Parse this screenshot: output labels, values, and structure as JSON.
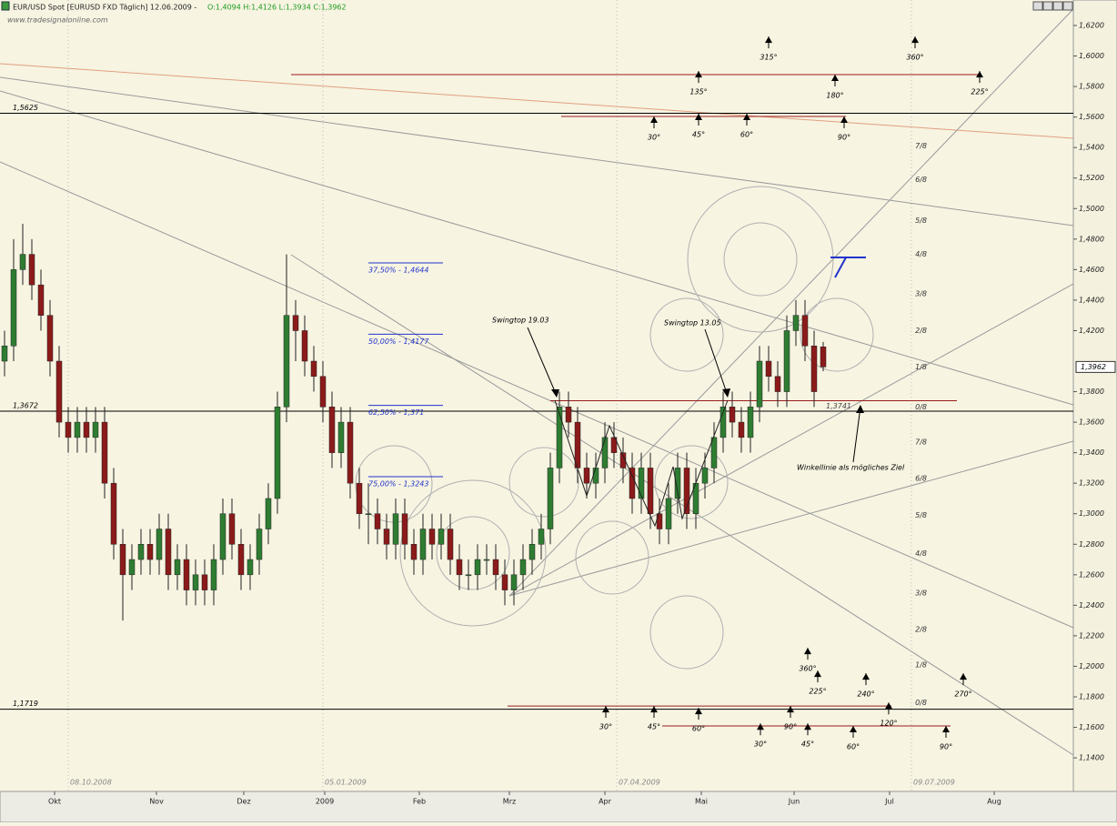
{
  "chart_data": {
    "type": "candlestick",
    "title": "EUR/USD Spot [EURUSD FXD  Täglich] 12.06.2009 -",
    "quote": "O:1,4094 H:1,4126 L:1,3934 C:1,3962",
    "watermark": "www.tradesignalonline.com",
    "up_color": "#2e7d32",
    "down_color": "#8b1a1a",
    "xlim": [
      -11,
      225
    ],
    "ylim": [
      1.118,
      1.6367
    ],
    "xticks": [
      {
        "value": 1,
        "label": "Okt"
      },
      {
        "value": 23.4,
        "label": "Nov"
      },
      {
        "value": 42.6,
        "label": "Dez"
      },
      {
        "value": 60.4,
        "label": "2009"
      },
      {
        "value": 81.2,
        "label": "Feb"
      },
      {
        "value": 101,
        "label": "Mrz"
      },
      {
        "value": 122,
        "label": "Apr"
      },
      {
        "value": 143.2,
        "label": "Mai"
      },
      {
        "value": 163.6,
        "label": "Jun"
      },
      {
        "value": 184.6,
        "label": "Jul"
      },
      {
        "value": 207.6,
        "label": "Aug"
      }
    ],
    "yticks": [
      {
        "value": 1.14,
        "label": "1,1400"
      },
      {
        "value": 1.16,
        "label": "1,1600"
      },
      {
        "value": 1.18,
        "label": "1,1800"
      },
      {
        "value": 1.2,
        "label": "1,2000"
      },
      {
        "value": 1.22,
        "label": "1,2200"
      },
      {
        "value": 1.24,
        "label": "1,2400"
      },
      {
        "value": 1.26,
        "label": "1,2600"
      },
      {
        "value": 1.28,
        "label": "1,2800"
      },
      {
        "value": 1.3,
        "label": "1,3000"
      },
      {
        "value": 1.32,
        "label": "1,3200"
      },
      {
        "value": 1.34,
        "label": "1,3400"
      },
      {
        "value": 1.36,
        "label": "1,3600"
      },
      {
        "value": 1.38,
        "label": "1,3800"
      },
      {
        "value": 1.42,
        "label": "1,4200"
      },
      {
        "value": 1.44,
        "label": "1,4400"
      },
      {
        "value": 1.46,
        "label": "1,4600"
      },
      {
        "value": 1.48,
        "label": "1,4800"
      },
      {
        "value": 1.5,
        "label": "1,5000"
      },
      {
        "value": 1.52,
        "label": "1,5200"
      },
      {
        "value": 1.54,
        "label": "1,5400"
      },
      {
        "value": 1.56,
        "label": "1,5600"
      },
      {
        "value": 1.58,
        "label": "1,5800"
      },
      {
        "value": 1.6,
        "label": "1,6000"
      },
      {
        "value": 1.62,
        "label": "1,6200"
      }
    ],
    "price_tag": {
      "value": 1.3962,
      "label": "1,3962"
    },
    "date_markers": [
      {
        "value": 4,
        "label": "08.10.2008"
      },
      {
        "value": 60,
        "label": "05.01.2009"
      },
      {
        "value": 124.6,
        "label": "07.04.2009"
      },
      {
        "value": 189.4,
        "label": "09.07.2009"
      }
    ],
    "x": [
      -10,
      -8,
      -6,
      -4,
      -2,
      0,
      2,
      4,
      6,
      8,
      10,
      12,
      14,
      16,
      18,
      20,
      22,
      24,
      26,
      28,
      30,
      32,
      34,
      36,
      38,
      40,
      42,
      44,
      46,
      48,
      50,
      52,
      54,
      56,
      58,
      60,
      62,
      64,
      66,
      68,
      70,
      72,
      74,
      76,
      78,
      80,
      82,
      84,
      86,
      88,
      90,
      92,
      94,
      96,
      98,
      100,
      102,
      104,
      106,
      108,
      110,
      112,
      114,
      116,
      118,
      120,
      122,
      124,
      126,
      128,
      130,
      132,
      134,
      136,
      138,
      140,
      142,
      144,
      146,
      148,
      150,
      152,
      154,
      156,
      158,
      160,
      162,
      164,
      166,
      168,
      170
    ],
    "open": [
      1.4,
      1.41,
      1.46,
      1.47,
      1.45,
      1.43,
      1.4,
      1.36,
      1.35,
      1.36,
      1.35,
      1.36,
      1.32,
      1.28,
      1.26,
      1.27,
      1.28,
      1.27,
      1.29,
      1.26,
      1.27,
      1.25,
      1.26,
      1.25,
      1.27,
      1.3,
      1.28,
      1.26,
      1.27,
      1.29,
      1.31,
      1.37,
      1.43,
      1.42,
      1.4,
      1.39,
      1.37,
      1.34,
      1.36,
      1.32,
      1.3,
      1.3,
      1.29,
      1.28,
      1.3,
      1.28,
      1.27,
      1.29,
      1.28,
      1.29,
      1.27,
      1.26,
      1.26,
      1.27,
      1.27,
      1.26,
      1.25,
      1.26,
      1.27,
      1.28,
      1.29,
      1.33,
      1.37,
      1.36,
      1.33,
      1.32,
      1.33,
      1.35,
      1.34,
      1.33,
      1.31,
      1.33,
      1.3,
      1.29,
      1.31,
      1.33,
      1.3,
      1.32,
      1.33,
      1.35,
      1.37,
      1.36,
      1.35,
      1.37,
      1.4,
      1.39,
      1.38,
      1.42,
      1.43,
      1.41,
      1.4094
    ],
    "high": [
      1.42,
      1.48,
      1.49,
      1.48,
      1.46,
      1.44,
      1.41,
      1.37,
      1.37,
      1.37,
      1.37,
      1.37,
      1.33,
      1.29,
      1.28,
      1.29,
      1.29,
      1.3,
      1.3,
      1.28,
      1.28,
      1.27,
      1.27,
      1.28,
      1.31,
      1.31,
      1.29,
      1.28,
      1.3,
      1.32,
      1.38,
      1.47,
      1.44,
      1.43,
      1.41,
      1.4,
      1.38,
      1.37,
      1.37,
      1.33,
      1.32,
      1.31,
      1.3,
      1.31,
      1.31,
      1.29,
      1.3,
      1.3,
      1.3,
      1.3,
      1.28,
      1.27,
      1.28,
      1.28,
      1.28,
      1.27,
      1.27,
      1.28,
      1.29,
      1.3,
      1.34,
      1.38,
      1.38,
      1.37,
      1.34,
      1.34,
      1.36,
      1.36,
      1.35,
      1.34,
      1.34,
      1.34,
      1.31,
      1.32,
      1.34,
      1.34,
      1.33,
      1.34,
      1.36,
      1.38,
      1.38,
      1.37,
      1.38,
      1.41,
      1.41,
      1.4,
      1.43,
      1.44,
      1.44,
      1.42,
      1.4126
    ],
    "low": [
      1.39,
      1.4,
      1.45,
      1.44,
      1.42,
      1.39,
      1.35,
      1.34,
      1.34,
      1.34,
      1.34,
      1.31,
      1.27,
      1.23,
      1.25,
      1.26,
      1.26,
      1.26,
      1.25,
      1.25,
      1.24,
      1.24,
      1.24,
      1.24,
      1.26,
      1.27,
      1.25,
      1.25,
      1.26,
      1.28,
      1.3,
      1.36,
      1.4,
      1.39,
      1.38,
      1.36,
      1.33,
      1.33,
      1.31,
      1.29,
      1.28,
      1.28,
      1.27,
      1.27,
      1.27,
      1.26,
      1.26,
      1.27,
      1.27,
      1.26,
      1.25,
      1.25,
      1.25,
      1.26,
      1.25,
      1.24,
      1.24,
      1.25,
      1.26,
      1.27,
      1.28,
      1.32,
      1.35,
      1.32,
      1.31,
      1.31,
      1.32,
      1.33,
      1.32,
      1.3,
      1.3,
      1.29,
      1.28,
      1.28,
      1.3,
      1.29,
      1.29,
      1.31,
      1.32,
      1.34,
      1.35,
      1.34,
      1.34,
      1.36,
      1.38,
      1.37,
      1.37,
      1.41,
      1.4,
      1.37,
      1.3934
    ],
    "close": [
      1.41,
      1.46,
      1.47,
      1.45,
      1.43,
      1.4,
      1.36,
      1.35,
      1.36,
      1.35,
      1.36,
      1.32,
      1.28,
      1.26,
      1.27,
      1.28,
      1.27,
      1.29,
      1.26,
      1.27,
      1.25,
      1.26,
      1.25,
      1.27,
      1.3,
      1.28,
      1.26,
      1.27,
      1.29,
      1.31,
      1.37,
      1.43,
      1.42,
      1.4,
      1.39,
      1.37,
      1.34,
      1.36,
      1.32,
      1.3,
      1.3,
      1.29,
      1.28,
      1.3,
      1.28,
      1.27,
      1.29,
      1.28,
      1.29,
      1.27,
      1.26,
      1.26,
      1.27,
      1.27,
      1.26,
      1.25,
      1.26,
      1.27,
      1.28,
      1.29,
      1.33,
      1.37,
      1.36,
      1.33,
      1.32,
      1.33,
      1.35,
      1.34,
      1.33,
      1.31,
      1.33,
      1.3,
      1.29,
      1.31,
      1.33,
      1.3,
      1.32,
      1.33,
      1.35,
      1.37,
      1.36,
      1.35,
      1.37,
      1.4,
      1.39,
      1.38,
      1.42,
      1.43,
      1.41,
      1.38,
      1.3962
    ],
    "levels": [
      {
        "value": 1.5625,
        "label": "1,5625"
      },
      {
        "value": 1.3672,
        "label": "1,3672"
      },
      {
        "value": 1.1719,
        "label": "1,1719"
      }
    ],
    "fib_levels": [
      {
        "value": 1.4644,
        "label": "37,50% - 1,4644"
      },
      {
        "value": 1.4177,
        "label": "50,00% - 1,4177"
      },
      {
        "value": 1.371,
        "label": "62,50% - 1,371"
      },
      {
        "value": 1.3243,
        "label": "75,00% - 1,3243"
      }
    ],
    "red_lines": [
      {
        "value": 1.5878,
        "from": 53,
        "to": 204
      },
      {
        "value": 1.5604,
        "from": 112.4,
        "to": 175
      },
      {
        "value": 1.3741,
        "from": 110,
        "to": 199.4,
        "label": "1,3741"
      },
      {
        "value": 1.174,
        "from": 100.6,
        "to": 185
      },
      {
        "value": 1.1609,
        "from": 134.6,
        "to": 198
      }
    ],
    "fractions": [
      {
        "value": 1.541,
        "label": "7/8"
      },
      {
        "value": 1.519,
        "label": "6/8"
      },
      {
        "value": 1.492,
        "label": "5/8"
      },
      {
        "value": 1.47,
        "label": "4/8"
      },
      {
        "value": 1.444,
        "label": "3/8"
      },
      {
        "value": 1.42,
        "label": "2/8"
      },
      {
        "value": 1.396,
        "label": "1/8"
      },
      {
        "value": 1.37,
        "label": "0/8"
      },
      {
        "value": 1.347,
        "label": "7/8"
      },
      {
        "value": 1.323,
        "label": "6/8"
      },
      {
        "value": 1.299,
        "label": "5/8"
      },
      {
        "value": 1.274,
        "label": "4/8"
      },
      {
        "value": 1.248,
        "label": "3/8"
      },
      {
        "value": 1.224,
        "label": "2/8"
      },
      {
        "value": 1.201,
        "label": "1/8"
      },
      {
        "value": 1.176,
        "label": "0/8"
      }
    ],
    "angles": [
      {
        "label": "315°",
        "x": 158,
        "y": 1.6128
      },
      {
        "label": "360°",
        "x": 190.2,
        "y": 1.6128
      },
      {
        "label": "135°",
        "x": 142.6,
        "y": 1.5901
      },
      {
        "label": "180°",
        "x": 172.6,
        "y": 1.5878
      },
      {
        "label": "225°",
        "x": 204.4,
        "y": 1.5901
      },
      {
        "label": "30°",
        "x": 132.8,
        "y": 1.5604
      },
      {
        "label": "45°",
        "x": 142.6,
        "y": 1.5622
      },
      {
        "label": "60°",
        "x": 153.2,
        "y": 1.5622
      },
      {
        "label": "90°",
        "x": 174.6,
        "y": 1.5604
      },
      {
        "label": "360°",
        "x": 166.6,
        "y": 1.2121
      },
      {
        "label": "225°",
        "x": 168.8,
        "y": 1.1972
      },
      {
        "label": "240°",
        "x": 179.4,
        "y": 1.1954
      },
      {
        "label": "270°",
        "x": 200.8,
        "y": 1.1954
      },
      {
        "label": "120°",
        "x": 184.4,
        "y": 1.1763
      },
      {
        "label": "30°",
        "x": 122.2,
        "y": 1.174
      },
      {
        "label": "45°",
        "x": 132.8,
        "y": 1.174
      },
      {
        "label": "60°",
        "x": 142.6,
        "y": 1.1728
      },
      {
        "label": "90°",
        "x": 162.8,
        "y": 1.174
      },
      {
        "label": "30°",
        "x": 156.2,
        "y": 1.1626
      },
      {
        "label": "45°",
        "x": 166.6,
        "y": 1.1626
      },
      {
        "label": "60°",
        "x": 176.6,
        "y": 1.1609
      },
      {
        "label": "90°",
        "x": 197,
        "y": 1.1609
      }
    ],
    "notes": {
      "swingtop_1": "Swingtop 19.03",
      "swingtop_2": "Swingtop 13.05",
      "target": "Winkellinie als mögliches Ziel"
    }
  }
}
